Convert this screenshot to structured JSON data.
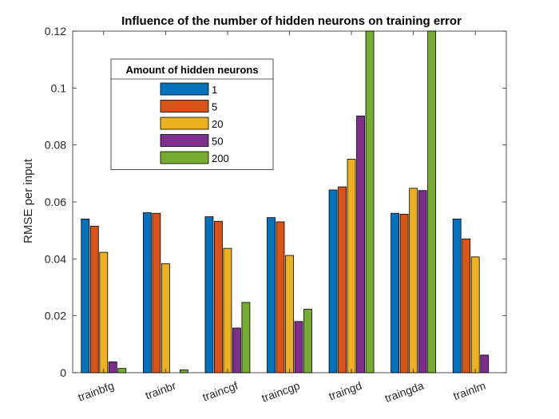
{
  "chart_data": {
    "type": "bar",
    "title": "Influence of the number of hidden neurons on training error",
    "xlabel": "",
    "ylabel": "RMSE per input",
    "ylim": [
      0,
      0.12
    ],
    "yticks": [
      "0",
      "0.02",
      "0.04",
      "0.06",
      "0.08",
      "0.1",
      "0.12"
    ],
    "categories": [
      "trainbfg",
      "trainbr",
      "traincgf",
      "traincgp",
      "traingd",
      "traingda",
      "trainlm"
    ],
    "legend_title": "Amount of hidden neurons",
    "legend_position": "upper-left",
    "series": [
      {
        "name": "1",
        "color": "#0072BD",
        "values": [
          0.054,
          0.0562,
          0.0548,
          0.0545,
          0.0642,
          0.056,
          0.054
        ]
      },
      {
        "name": "5",
        "color": "#D95319",
        "values": [
          0.0515,
          0.056,
          0.0532,
          0.053,
          0.0653,
          0.0557,
          0.047
        ]
      },
      {
        "name": "20",
        "color": "#EDB120",
        "values": [
          0.0423,
          0.0383,
          0.0437,
          0.0412,
          0.075,
          0.0648,
          0.0407
        ]
      },
      {
        "name": "50",
        "color": "#7E2F8E",
        "values": [
          0.0038,
          0,
          0.0157,
          0.018,
          0.0902,
          0.064,
          0.0062
        ]
      },
      {
        "name": "200",
        "color": "#77AC30",
        "values": [
          0.0015,
          0.001,
          0.0247,
          0.0223,
          0.12,
          0.12,
          0
        ]
      }
    ]
  }
}
